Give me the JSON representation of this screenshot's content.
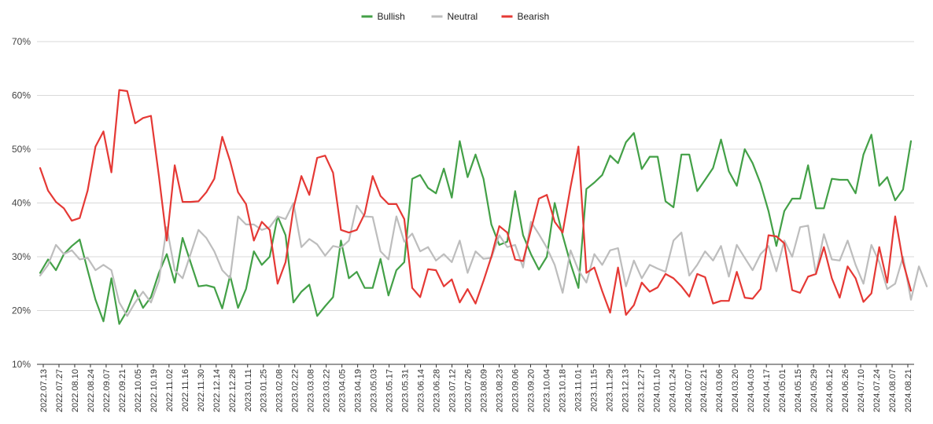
{
  "chart_data": {
    "type": "line",
    "title": "",
    "xlabel": "",
    "ylabel": "",
    "ylim": [
      0.1,
      0.7
    ],
    "yticks": [
      "10%",
      "20%",
      "30%",
      "40%",
      "50%",
      "60%",
      "70%"
    ],
    "grid": true,
    "legend_position": "top-center",
    "x_tick_labels": [
      "2022.07.13",
      "2022.07.27",
      "2022.08.10",
      "2022.08.24",
      "2022.09.07",
      "2022.09.21",
      "2022.10.05",
      "2022.10.19",
      "2022.11.02",
      "2022.11.16",
      "2022.11.30",
      "2022.12.14",
      "2022.12.28",
      "2023.01.11",
      "2023.01.25",
      "2023.02.08",
      "2023.02.22",
      "2023.03.08",
      "2023.03.22",
      "2023.04.05",
      "2023.04.19",
      "2023.05.03",
      "2023.05.17",
      "2023.05.31",
      "2023.06.14",
      "2023.06.28",
      "2023.07.12",
      "2023.07.26",
      "2023.08.09",
      "2023.08.23",
      "2023.09.06",
      "2023.09.20",
      "2023.10.04",
      "2023.10.18",
      "2023.11.01",
      "2023.11.15",
      "2023.11.29",
      "2023.12.13",
      "2023.12.27",
      "2024.01.10",
      "2024.01.24",
      "2024.02.07",
      "2024.02.21",
      "2024.03.06",
      "2024.03.20",
      "2024.04.03",
      "2024.04.17",
      "2024.05.01",
      "2024.05.15",
      "2024.05.29",
      "2024.06.12",
      "2024.06.26",
      "2024.07.10",
      "2024.07.24",
      "2024.08.07",
      "2024.08.21"
    ],
    "series": [
      {
        "name": "Bullish",
        "color": "#43a047",
        "values": [
          0.27,
          0.295,
          0.275,
          0.305,
          0.32,
          0.332,
          0.275,
          0.22,
          0.18,
          0.26,
          0.175,
          0.2,
          0.238,
          0.205,
          0.225,
          0.27,
          0.305,
          0.252,
          0.335,
          0.29,
          0.245,
          0.247,
          0.243,
          0.204,
          0.265,
          0.205,
          0.24,
          0.31,
          0.285,
          0.3,
          0.375,
          0.34,
          0.215,
          0.235,
          0.248,
          0.19,
          0.208,
          0.225,
          0.33,
          0.26,
          0.272,
          0.242,
          0.242,
          0.296,
          0.228,
          0.275,
          0.29,
          0.445,
          0.452,
          0.428,
          0.418,
          0.464,
          0.41,
          0.515,
          0.448,
          0.49,
          0.445,
          0.36,
          0.322,
          0.328,
          0.422,
          0.34,
          0.305,
          0.276,
          0.3,
          0.4,
          0.34,
          0.287,
          0.242,
          0.426,
          0.438,
          0.452,
          0.488,
          0.474,
          0.513,
          0.53,
          0.463,
          0.486,
          0.486,
          0.403,
          0.392,
          0.49,
          0.49,
          0.422,
          0.443,
          0.465,
          0.518,
          0.459,
          0.432,
          0.5,
          0.474,
          0.436,
          0.385,
          0.32,
          0.385,
          0.408,
          0.408,
          0.47,
          0.39,
          0.39,
          0.445,
          0.443,
          0.443,
          0.418,
          0.49,
          0.527,
          0.432,
          0.448,
          0.405,
          0.425,
          0.515
        ]
      },
      {
        "name": "Neutral",
        "color": "#bdbdbd",
        "values": [
          0.265,
          0.285,
          0.322,
          0.305,
          0.312,
          0.295,
          0.298,
          0.275,
          0.285,
          0.275,
          0.215,
          0.19,
          0.215,
          0.235,
          0.215,
          0.255,
          0.355,
          0.275,
          0.26,
          0.305,
          0.35,
          0.335,
          0.31,
          0.275,
          0.26,
          0.375,
          0.36,
          0.36,
          0.35,
          0.355,
          0.375,
          0.37,
          0.4,
          0.318,
          0.333,
          0.323,
          0.302,
          0.32,
          0.317,
          0.33,
          0.395,
          0.375,
          0.374,
          0.31,
          0.295,
          0.375,
          0.328,
          0.343,
          0.31,
          0.318,
          0.293,
          0.305,
          0.29,
          0.33,
          0.27,
          0.31,
          0.296,
          0.298,
          0.34,
          0.318,
          0.322,
          0.28,
          0.365,
          0.342,
          0.317,
          0.285,
          0.233,
          0.312,
          0.275,
          0.252,
          0.305,
          0.285,
          0.312,
          0.316,
          0.245,
          0.293,
          0.26,
          0.285,
          0.278,
          0.272,
          0.33,
          0.345,
          0.265,
          0.285,
          0.31,
          0.293,
          0.32,
          0.263,
          0.322,
          0.298,
          0.275,
          0.305,
          0.32,
          0.273,
          0.33,
          0.3,
          0.355,
          0.358,
          0.268,
          0.342,
          0.295,
          0.293,
          0.33,
          0.285,
          0.25,
          0.322,
          0.29,
          0.24,
          0.25,
          0.3,
          0.22,
          0.282,
          0.245
        ]
      },
      {
        "name": "Bearish",
        "color": "#e53935",
        "values": [
          0.465,
          0.423,
          0.402,
          0.39,
          0.367,
          0.372,
          0.423,
          0.505,
          0.533,
          0.457,
          0.61,
          0.608,
          0.548,
          0.558,
          0.562,
          0.45,
          0.33,
          0.47,
          0.402,
          0.402,
          0.403,
          0.42,
          0.445,
          0.523,
          0.478,
          0.42,
          0.398,
          0.33,
          0.365,
          0.35,
          0.25,
          0.29,
          0.39,
          0.45,
          0.415,
          0.484,
          0.488,
          0.456,
          0.35,
          0.345,
          0.35,
          0.38,
          0.45,
          0.413,
          0.398,
          0.398,
          0.37,
          0.242,
          0.225,
          0.277,
          0.275,
          0.245,
          0.258,
          0.215,
          0.24,
          0.213,
          0.255,
          0.3,
          0.357,
          0.345,
          0.295,
          0.292,
          0.35,
          0.408,
          0.415,
          0.365,
          0.345,
          0.43,
          0.505,
          0.27,
          0.28,
          0.236,
          0.196,
          0.28,
          0.192,
          0.21,
          0.252,
          0.235,
          0.243,
          0.268,
          0.26,
          0.245,
          0.226,
          0.268,
          0.262,
          0.213,
          0.218,
          0.218,
          0.272,
          0.224,
          0.222,
          0.24,
          0.34,
          0.338,
          0.325,
          0.238,
          0.233,
          0.263,
          0.268,
          0.318,
          0.26,
          0.224,
          0.282,
          0.26,
          0.216,
          0.232,
          0.318,
          0.252,
          0.375,
          0.29,
          0.237
        ]
      }
    ]
  }
}
